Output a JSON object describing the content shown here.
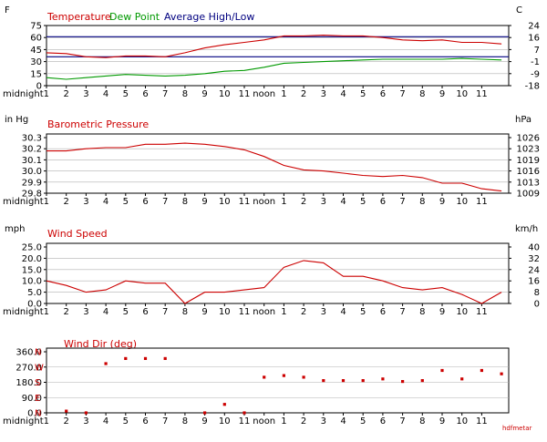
{
  "x_labels": [
    "midnight1",
    "2",
    "3",
    "4",
    "5",
    "6",
    "7",
    "8",
    "9",
    "10",
    "11",
    "noon",
    "1",
    "2",
    "3",
    "4",
    "5",
    "6",
    "7",
    "8",
    "9",
    "10",
    "11"
  ],
  "credit": "hdfmetar",
  "colors": {
    "red": "#cc0000",
    "green": "#009900",
    "navy": "#000080",
    "grid": "#b0b0b0"
  },
  "chart_data": [
    {
      "type": "line",
      "title_parts": [
        "Temperature",
        "Dew Point",
        "Average High/Low"
      ],
      "left_unit": "F",
      "right_unit": "C",
      "ylim": [
        0,
        75
      ],
      "left_ticks": [
        "75",
        "60",
        "45",
        "30",
        "15",
        "0"
      ],
      "right_ticks": [
        "24",
        "16",
        "7",
        "-1",
        "-9",
        "-18"
      ],
      "x": [
        0,
        1,
        2,
        3,
        4,
        5,
        6,
        7,
        8,
        9,
        10,
        11,
        12,
        13,
        14,
        15,
        16,
        17,
        18,
        19,
        20,
        21,
        22,
        23
      ],
      "series": [
        {
          "name": "Temperature",
          "color": "#cc0000",
          "values": [
            41,
            40,
            36,
            35,
            37,
            37,
            36,
            41,
            47,
            51,
            54,
            57,
            62,
            62,
            63,
            62,
            62,
            60,
            57,
            56,
            57,
            54,
            54,
            52
          ]
        },
        {
          "name": "Dew Point",
          "color": "#009900",
          "values": [
            10,
            8,
            10,
            12,
            14,
            13,
            12,
            13,
            15,
            18,
            19,
            23,
            28,
            29,
            30,
            31,
            32,
            33,
            33,
            33,
            33,
            34,
            33,
            32
          ]
        },
        {
          "name": "Average High/Low",
          "color": "#000080",
          "values_high": 61,
          "values_low": 36
        }
      ]
    },
    {
      "type": "line",
      "title": "Barometric Pressure",
      "left_unit": "in Hg",
      "right_unit": "hPa",
      "ylim": [
        29.8,
        30.3
      ],
      "left_ticks": [
        "30.3",
        "30.2",
        "30.1",
        "30.0",
        "29.9",
        "29.8"
      ],
      "right_ticks": [
        "1026",
        "1023",
        "1019",
        "1016",
        "1013",
        "1009"
      ],
      "x": [
        0,
        1,
        2,
        3,
        4,
        5,
        6,
        7,
        8,
        9,
        10,
        11,
        12,
        13,
        14,
        15,
        16,
        17,
        18,
        19,
        20,
        21,
        22,
        23
      ],
      "series": [
        {
          "name": "Barometric Pressure",
          "color": "#cc0000",
          "values": [
            30.18,
            30.18,
            30.2,
            30.21,
            30.21,
            30.24,
            30.24,
            30.25,
            30.24,
            30.22,
            30.19,
            30.13,
            30.05,
            30.01,
            30.0,
            29.98,
            29.96,
            29.95,
            29.96,
            29.94,
            29.89,
            29.89,
            29.84,
            29.82
          ]
        }
      ]
    },
    {
      "type": "line",
      "title": "Wind Speed",
      "left_unit": "mph",
      "right_unit": "km/h",
      "ylim": [
        0,
        25
      ],
      "left_ticks": [
        "25.0",
        "20.0",
        "15.0",
        "10.0",
        "5.0",
        "0.0"
      ],
      "right_ticks": [
        "40",
        "32",
        "24",
        "16",
        "8",
        "0"
      ],
      "x": [
        0,
        1,
        2,
        3,
        4,
        5,
        6,
        7,
        8,
        9,
        10,
        11,
        12,
        13,
        14,
        15,
        16,
        17,
        18,
        19,
        20,
        21,
        22,
        23
      ],
      "series": [
        {
          "name": "Wind Speed",
          "color": "#cc0000",
          "values": [
            10,
            8,
            5,
            6,
            10,
            9,
            9,
            0,
            5,
            5,
            6,
            7,
            16,
            19,
            18,
            12,
            12,
            10,
            7,
            6,
            7,
            4,
            0,
            5
          ]
        }
      ]
    },
    {
      "type": "scatter",
      "title": "Wind Dir (deg)",
      "left_ticks": [
        "360.0",
        "270.0",
        "180.0",
        "90.0",
        "0.0"
      ],
      "compass_ticks": [
        "N",
        "W",
        "S",
        "E",
        "N"
      ],
      "ylim": [
        0,
        360
      ],
      "x": [
        1,
        2,
        3,
        4,
        5,
        6,
        8,
        9,
        10,
        11,
        12,
        13,
        14,
        15,
        16,
        17,
        18,
        19,
        20,
        21,
        22,
        23
      ],
      "series": [
        {
          "name": "Wind Dir",
          "color": "#cc0000",
          "values": [
            10,
            0,
            290,
            320,
            320,
            320,
            0,
            50,
            0,
            210,
            220,
            210,
            190,
            190,
            190,
            200,
            185,
            190,
            250,
            200,
            250,
            230
          ]
        }
      ]
    }
  ]
}
